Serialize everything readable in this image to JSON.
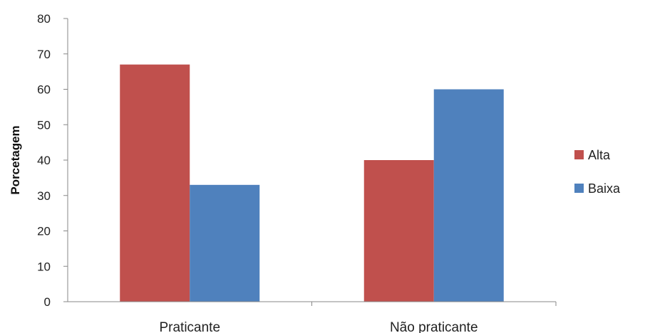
{
  "chart_data": {
    "type": "bar",
    "title": "",
    "xlabel": "",
    "ylabel": "Porcetagem",
    "categories": [
      "Praticante",
      "Não praticante"
    ],
    "series": [
      {
        "name": "Alta",
        "values": [
          67,
          40
        ],
        "color": "#c0504d"
      },
      {
        "name": "Baixa",
        "values": [
          33,
          60
        ],
        "color": "#4f81bd"
      }
    ],
    "ylim": [
      0,
      80
    ],
    "yticks": [
      0,
      10,
      20,
      30,
      40,
      50,
      60,
      70,
      80
    ],
    "grid": false,
    "legend_position": "right"
  }
}
